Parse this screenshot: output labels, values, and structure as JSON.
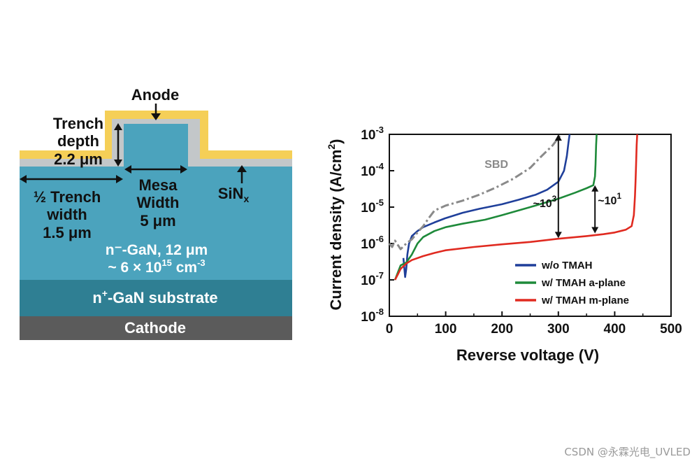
{
  "diagram": {
    "anode": "Anode",
    "trench_depth_line1": "Trench",
    "trench_depth_line2": "depth",
    "trench_depth_value": "2.2 μm",
    "half_trench_line1": "½ Trench",
    "half_trench_line2": "width",
    "half_trench_value": "1.5 μm",
    "mesa_line1": "Mesa",
    "mesa_line2": "Width",
    "mesa_value": "5 μm",
    "sinx_base": "SiN",
    "sinx_sub": "x",
    "drift_line1": "n⁻-GaN, 12 μm",
    "drift_line2_base": "~ 6 × 10",
    "drift_line2_exp": "15",
    "drift_line2_unit": " cm",
    "drift_line2_unit_exp": "-3",
    "substrate_base": "n",
    "substrate_sup": "+",
    "substrate_rest": "-GaN substrate",
    "cathode": "Cathode",
    "colors": {
      "anode_metal": "#f5cf57",
      "sinx": "#c3c7c9",
      "drift": "#4ba3bd",
      "substrate": "#2f7f93",
      "cathode": "#5b5b5b"
    }
  },
  "chart_data": {
    "type": "line",
    "xlabel": "Reverse voltage (V)",
    "ylabel_base": "Current density (A/cm",
    "ylabel_sup": "2",
    "ylabel_close": ")",
    "xlim": [
      0,
      500
    ],
    "ylim": [
      1e-08,
      0.001
    ],
    "y_scale": "log",
    "x_ticks": [
      0,
      100,
      200,
      300,
      400,
      500
    ],
    "x_tick_labels": [
      "0",
      "100",
      "200",
      "300",
      "400",
      "500"
    ],
    "y_ticks": [
      1e-08,
      1e-07,
      1e-06,
      1e-05,
      0.0001,
      0.001
    ],
    "y_tick_labels": [
      {
        "base": "10",
        "exp": "-8"
      },
      {
        "base": "10",
        "exp": "-7"
      },
      {
        "base": "10",
        "exp": "-6"
      },
      {
        "base": "10",
        "exp": "-5"
      },
      {
        "base": "10",
        "exp": "-4"
      },
      {
        "base": "10",
        "exp": "-3"
      }
    ],
    "grid": false,
    "legend_position": "bottom-right",
    "series": [
      {
        "name": "w/o TMAH",
        "color": "#1f3f9a",
        "style": "solid",
        "x": [
          25,
          28,
          30,
          32,
          35,
          40,
          50,
          60,
          80,
          100,
          130,
          160,
          200,
          230,
          260,
          280,
          300,
          310,
          315,
          318,
          320
        ],
        "y": [
          4e-07,
          1.2e-07,
          2e-07,
          5e-07,
          1e-06,
          1.6e-06,
          2.2e-06,
          2.8e-06,
          3.8e-06,
          5e-06,
          7e-06,
          9e-06,
          1.2e-05,
          1.6e-05,
          2.2e-05,
          3e-05,
          5e-05,
          0.0001,
          0.00025,
          0.0006,
          0.001
        ]
      },
      {
        "name": "w/ TMAH a-plane",
        "color": "#1e8a3a",
        "style": "solid",
        "x": [
          10,
          20,
          30,
          40,
          50,
          60,
          80,
          100,
          130,
          170,
          200,
          250,
          300,
          330,
          350,
          362,
          365,
          366,
          367,
          368
        ],
        "y": [
          1e-07,
          2.5e-07,
          3e-07,
          5e-07,
          1e-06,
          1.5e-06,
          2.2e-06,
          2.8e-06,
          3.5e-06,
          4.5e-06,
          6e-06,
          1e-05,
          1.7e-05,
          2.5e-05,
          3.3e-05,
          4e-05,
          7e-05,
          0.00015,
          0.0005,
          0.001
        ]
      },
      {
        "name": "w/ TMAH m-plane",
        "color": "#e02a20",
        "style": "solid",
        "x": [
          10,
          15,
          20,
          30,
          40,
          60,
          80,
          100,
          150,
          200,
          250,
          300,
          350,
          380,
          400,
          420,
          430,
          434,
          436,
          437,
          438,
          439,
          440
        ],
        "y": [
          1e-07,
          1.4e-07,
          2e-07,
          2.8e-07,
          3.5e-07,
          4.5e-07,
          5.5e-07,
          6.5e-07,
          8e-07,
          9.5e-07,
          1.1e-06,
          1.35e-06,
          1.6e-06,
          1.8e-06,
          2e-06,
          2.4e-06,
          3e-06,
          6e-06,
          2e-05,
          5e-05,
          0.00015,
          0.0005,
          0.001
        ]
      },
      {
        "name": "SBD",
        "color": "#8a8a8a",
        "style": "dashdot",
        "x": [
          0,
          5,
          10,
          20,
          30,
          40,
          50,
          60,
          70,
          80,
          100,
          130,
          160,
          190,
          220,
          250,
          270,
          290,
          300,
          305
        ],
        "y": [
          1e-06,
          8e-07,
          1.2e-06,
          7e-07,
          1e-06,
          1.3e-06,
          2e-06,
          3e-06,
          5e-06,
          8e-06,
          1.1e-05,
          1.5e-05,
          2.2e-05,
          3.5e-05,
          6e-05,
          0.00012,
          0.00025,
          0.0005,
          0.0008,
          0.001
        ]
      }
    ],
    "annotations": [
      {
        "text": "SBD",
        "x": 190,
        "y": 0.00012,
        "color": "#8a8a8a"
      },
      {
        "text_base": "~10",
        "text_exp": "3",
        "x": 255,
        "y": 1e-05,
        "arrow_x": 300,
        "arrow_y1": 0.001,
        "arrow_y2": 1.4e-06
      },
      {
        "text_base": "~10",
        "text_exp": "1",
        "x": 370,
        "y": 1.2e-05,
        "arrow_x": 365,
        "arrow_y1": 4e-05,
        "arrow_y2": 1.9e-06
      }
    ]
  },
  "watermark": "CSDN @永霖光电_UVLED"
}
